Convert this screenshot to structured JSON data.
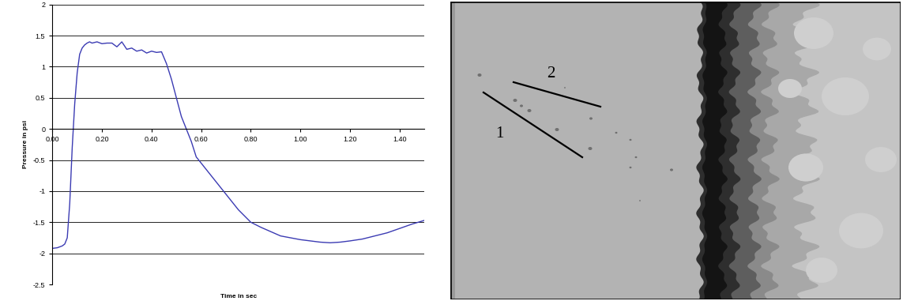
{
  "chart_data": {
    "type": "line",
    "xlabel": "Time in sec",
    "ylabel": "Pressure in psi",
    "x": [
      0,
      0.02,
      0.04,
      0.05,
      0.06,
      0.07,
      0.08,
      0.09,
      0.1,
      0.11,
      0.12,
      0.13,
      0.14,
      0.15,
      0.16,
      0.18,
      0.2,
      0.22,
      0.24,
      0.26,
      0.28,
      0.3,
      0.32,
      0.34,
      0.36,
      0.38,
      0.4,
      0.42,
      0.44,
      0.46,
      0.48,
      0.5,
      0.52,
      0.54,
      0.56,
      0.58,
      0.6,
      0.62,
      0.64,
      0.66,
      0.68,
      0.7,
      0.72,
      0.75,
      0.78,
      0.8,
      0.84,
      0.88,
      0.92,
      0.96,
      1.0,
      1.04,
      1.08,
      1.12,
      1.16,
      1.2,
      1.25,
      1.3,
      1.35,
      1.4,
      1.45,
      1.5
    ],
    "values": [
      -1.92,
      -1.91,
      -1.88,
      -1.85,
      -1.75,
      -1.2,
      -0.3,
      0.4,
      0.9,
      1.2,
      1.3,
      1.35,
      1.38,
      1.4,
      1.38,
      1.4,
      1.37,
      1.38,
      1.38,
      1.32,
      1.4,
      1.28,
      1.3,
      1.25,
      1.27,
      1.22,
      1.25,
      1.23,
      1.24,
      1.05,
      0.8,
      0.5,
      0.2,
      0.0,
      -0.2,
      -0.45,
      -0.55,
      -0.65,
      -0.75,
      -0.85,
      -0.95,
      -1.05,
      -1.15,
      -1.3,
      -1.42,
      -1.5,
      -1.58,
      -1.65,
      -1.72,
      -1.75,
      -1.78,
      -1.8,
      -1.82,
      -1.83,
      -1.82,
      -1.8,
      -1.77,
      -1.72,
      -1.67,
      -1.6,
      -1.53,
      -1.47
    ],
    "color": "#3b3bb3",
    "xlim": [
      0,
      1.5
    ],
    "xticks": [
      {
        "value": 0,
        "label": "0.00"
      },
      {
        "value": 0.2,
        "label": "0.20"
      },
      {
        "value": 0.4,
        "label": "0.40"
      },
      {
        "value": 0.6,
        "label": "0.60"
      },
      {
        "value": 0.8,
        "label": "0.80"
      },
      {
        "value": 1.0,
        "label": "1.00"
      },
      {
        "value": 1.2,
        "label": "1.20"
      },
      {
        "value": 1.4,
        "label": "1.40"
      }
    ],
    "ylim": [
      -2.5,
      2
    ],
    "yticks": [
      -2.5,
      -2,
      -1.5,
      -1,
      -0.5,
      0,
      0.5,
      1,
      1.5,
      2
    ],
    "grid": true
  },
  "image": {
    "labels": [
      "1",
      "2"
    ]
  }
}
